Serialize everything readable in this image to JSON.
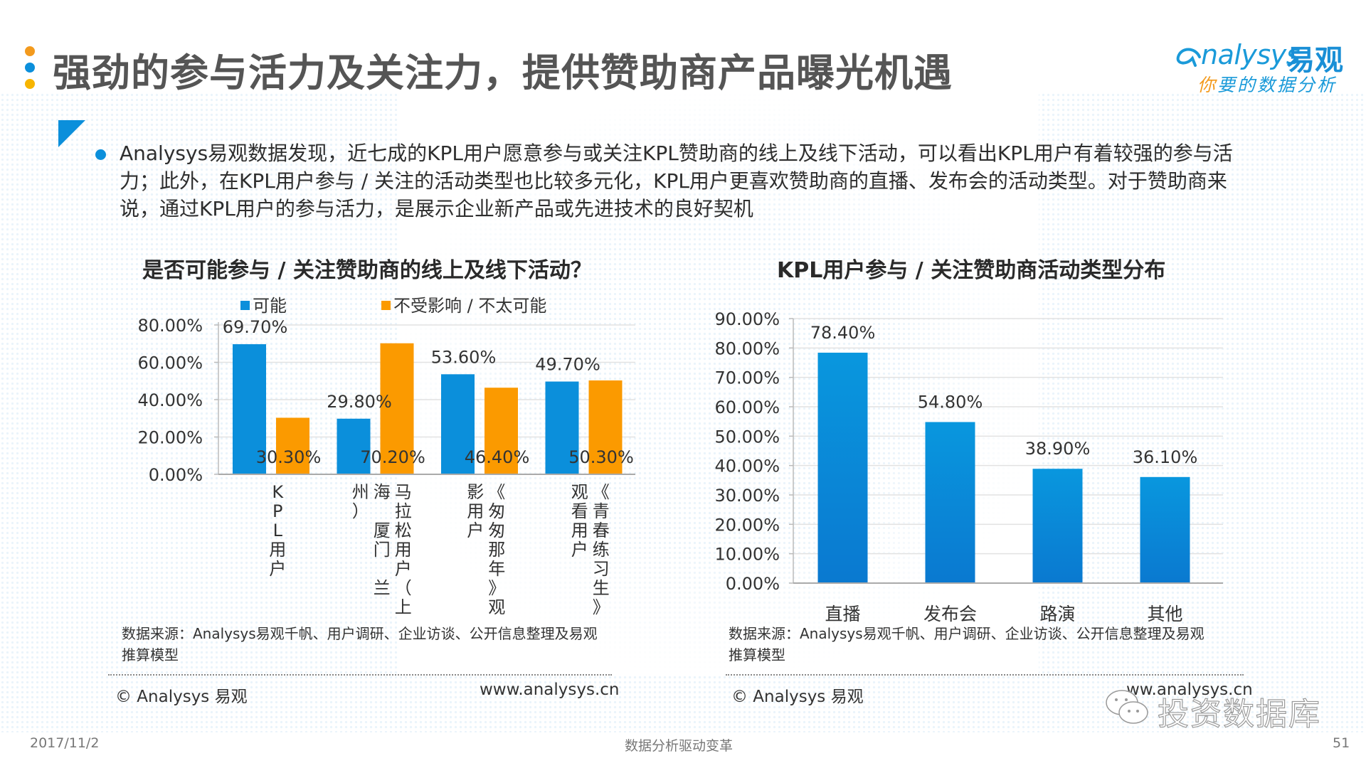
{
  "header": {
    "title": "强劲的参与活力及关注力，提供赞助商产品曝光机遇",
    "title_dot_colors": [
      "#f39a1d",
      "#0b8fdb",
      "#f7b500"
    ],
    "logo": {
      "brand_en": "nalysys",
      "brand_cn": "易观",
      "slogan_first": "你",
      "slogan_rest": "要的数据分析"
    }
  },
  "summary": {
    "text": "Analysys易观数据发现，近七成的KPL用户愿意参与或关注KPL赞助商的线上及线下活动，可以看出KPL用户有着较强的参与活力；此外，在KPL用户参与 / 关注的活动类型也比较多元化，KPL用户更喜欢赞助商的直播、发布会的活动类型。对于赞助商来说，通过KPL用户的参与活力，是展示企业新产品或先进技术的良好契机"
  },
  "colors": {
    "accent_blue": "#0b8fdb",
    "accent_orange": "#fb9a00"
  },
  "chart_data": [
    {
      "type": "bar",
      "title": "是否可能参与 / 关注赞助商的线上及线下活动？",
      "categories": [
        "KPL用户",
        "马拉松用户（上海 厦门 兰州）",
        "《匆匆那年》观影用户",
        "《青春练习生》观看用户"
      ],
      "category_lines": [
        [
          "KPL用户"
        ],
        [
          "马拉松用户（上",
          "海 厦门 兰",
          "州）"
        ],
        [
          "《匆匆那年》观",
          "影用户"
        ],
        [
          "《青春练习生》",
          "观看用户"
        ]
      ],
      "series": [
        {
          "name": "可能",
          "color": "#0b8fdb",
          "values": [
            69.7,
            29.8,
            53.6,
            49.7
          ],
          "labels": [
            "69.70%",
            "29.80%",
            "53.60%",
            "49.70%"
          ]
        },
        {
          "name": "不受影响 / 不太可能",
          "color": "#fb9a00",
          "values": [
            30.3,
            70.2,
            46.4,
            50.3
          ],
          "labels": [
            "30.30%",
            "70.20%",
            "46.40%",
            "50.30%"
          ]
        }
      ],
      "ylim": [
        0,
        80
      ],
      "yticks": [
        "0.00%",
        "20.00%",
        "40.00%",
        "60.00%",
        "80.00%"
      ],
      "legend": "top",
      "grid": true,
      "xlabel": "",
      "ylabel": ""
    },
    {
      "type": "bar",
      "title": "KPL用户参与 / 关注赞助商活动类型分布",
      "categories": [
        "直播",
        "发布会",
        "路演",
        "其他"
      ],
      "values": [
        78.4,
        54.8,
        38.9,
        36.1
      ],
      "labels": [
        "78.40%",
        "54.80%",
        "38.90%",
        "36.10%"
      ],
      "color": "#0b8fdb",
      "ylim": [
        0,
        90
      ],
      "yticks": [
        "0.00%",
        "10.00%",
        "20.00%",
        "30.00%",
        "40.00%",
        "50.00%",
        "60.00%",
        "70.00%",
        "80.00%",
        "90.00%"
      ],
      "grid": true,
      "xlabel": "",
      "ylabel": ""
    }
  ],
  "left_footer": {
    "source_line1": "数据来源：Analysys易观千帆、用户调研、企业访谈、公开信息整理及易观",
    "source_line2": "推算模型",
    "copyright": "© Analysys 易观",
    "site": "www.analysys.cn"
  },
  "right_footer": {
    "source_line1": "数据来源：Analysys易观千帆、用户调研、企业访谈、公开信息整理及易观",
    "source_line2": "推算模型",
    "copyright": "© Analysys 易观",
    "site": "ww.analysys.cn"
  },
  "watermark": {
    "text": "投资数据库"
  },
  "footer": {
    "date": "2017/11/2",
    "tagline": "数据分析驱动变革",
    "page": "51"
  }
}
